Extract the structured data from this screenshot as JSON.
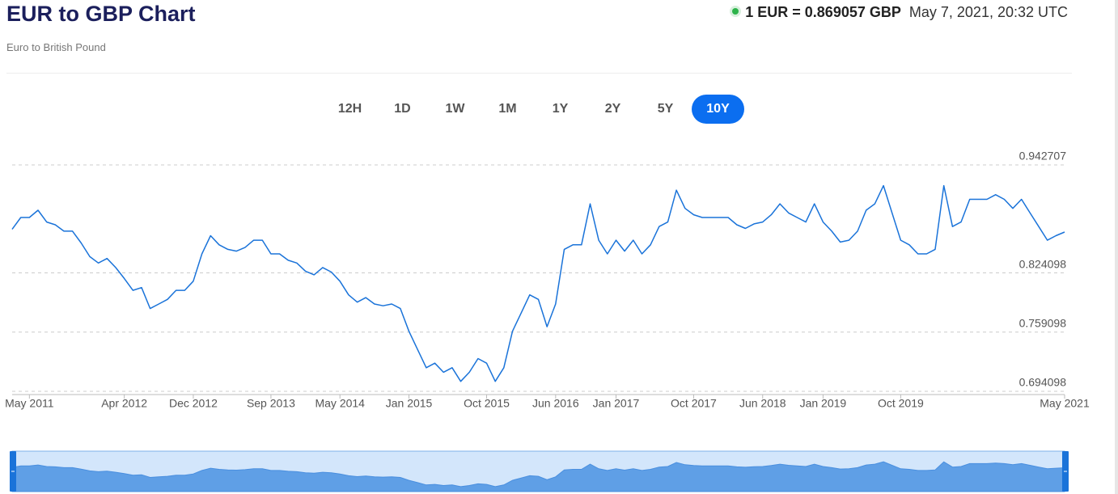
{
  "header": {
    "title": "EUR to GBP Chart",
    "subtitle": "Euro to British Pound",
    "rate_text": "1 EUR = 0.869057 GBP",
    "timestamp": "May 7, 2021, 20:32 UTC"
  },
  "ranges": [
    "12H",
    "1D",
    "1W",
    "1M",
    "1Y",
    "2Y",
    "5Y",
    "10Y"
  ],
  "selected_range": 7,
  "chart_data": {
    "type": "line",
    "color": "#1a73d9",
    "x": [
      "2011-03",
      "2011-04",
      "2011-05",
      "2011-06",
      "2011-07",
      "2011-08",
      "2011-09",
      "2011-10",
      "2011-11",
      "2011-12",
      "2012-01",
      "2012-02",
      "2012-03",
      "2012-04",
      "2012-05",
      "2012-06",
      "2012-07",
      "2012-08",
      "2012-09",
      "2012-10",
      "2012-11",
      "2012-12",
      "2013-01",
      "2013-02",
      "2013-03",
      "2013-04",
      "2013-05",
      "2013-06",
      "2013-07",
      "2013-08",
      "2013-09",
      "2013-10",
      "2013-11",
      "2013-12",
      "2014-01",
      "2014-02",
      "2014-03",
      "2014-04",
      "2014-05",
      "2014-06",
      "2014-07",
      "2014-08",
      "2014-09",
      "2014-10",
      "2014-11",
      "2014-12",
      "2015-01",
      "2015-02",
      "2015-03",
      "2015-04",
      "2015-05",
      "2015-06",
      "2015-07",
      "2015-08",
      "2015-09",
      "2015-10",
      "2015-11",
      "2015-12",
      "2016-01",
      "2016-02",
      "2016-03",
      "2016-04",
      "2016-05",
      "2016-06",
      "2016-07",
      "2016-08",
      "2016-09",
      "2016-10",
      "2016-11",
      "2016-12",
      "2017-01",
      "2017-02",
      "2017-03",
      "2017-04",
      "2017-05",
      "2017-06",
      "2017-07",
      "2017-08",
      "2017-09",
      "2017-10",
      "2017-11",
      "2017-12",
      "2018-01",
      "2018-02",
      "2018-03",
      "2018-04",
      "2018-05",
      "2018-06",
      "2018-07",
      "2018-08",
      "2018-09",
      "2018-10",
      "2018-11",
      "2018-12",
      "2019-01",
      "2019-02",
      "2019-03",
      "2019-04",
      "2019-05",
      "2019-06",
      "2019-07",
      "2019-08",
      "2019-09",
      "2019-10",
      "2019-11",
      "2019-12",
      "2020-01",
      "2020-02",
      "2020-03",
      "2020-04",
      "2020-05",
      "2020-06",
      "2020-07",
      "2020-08",
      "2020-09",
      "2020-10",
      "2020-11",
      "2020-12",
      "2021-01",
      "2021-02",
      "2021-03",
      "2021-04",
      "2021-05"
    ],
    "values": [
      0.872,
      0.885,
      0.885,
      0.893,
      0.88,
      0.877,
      0.87,
      0.87,
      0.857,
      0.842,
      0.835,
      0.84,
      0.83,
      0.818,
      0.805,
      0.808,
      0.785,
      0.79,
      0.795,
      0.805,
      0.805,
      0.815,
      0.845,
      0.865,
      0.855,
      0.85,
      0.848,
      0.852,
      0.86,
      0.86,
      0.845,
      0.845,
      0.838,
      0.835,
      0.826,
      0.822,
      0.83,
      0.825,
      0.815,
      0.8,
      0.792,
      0.797,
      0.79,
      0.788,
      0.79,
      0.785,
      0.76,
      0.74,
      0.72,
      0.725,
      0.715,
      0.72,
      0.705,
      0.715,
      0.73,
      0.725,
      0.705,
      0.72,
      0.76,
      0.78,
      0.8,
      0.795,
      0.765,
      0.79,
      0.85,
      0.855,
      0.855,
      0.9,
      0.86,
      0.845,
      0.86,
      0.848,
      0.86,
      0.845,
      0.855,
      0.875,
      0.88,
      0.915,
      0.895,
      0.888,
      0.885,
      0.885,
      0.885,
      0.885,
      0.877,
      0.873,
      0.878,
      0.88,
      0.888,
      0.9,
      0.89,
      0.885,
      0.88,
      0.9,
      0.88,
      0.87,
      0.858,
      0.86,
      0.87,
      0.893,
      0.9,
      0.92,
      0.89,
      0.86,
      0.855,
      0.845,
      0.845,
      0.85,
      0.92,
      0.875,
      0.88,
      0.905,
      0.905,
      0.905,
      0.91,
      0.905,
      0.895,
      0.905,
      0.89,
      0.875,
      0.86,
      0.865,
      0.869
    ],
    "xlim": [
      "2011-03",
      "2021-05"
    ],
    "xticks": [
      {
        "value": "2011-05",
        "label": "May 2011"
      },
      {
        "value": "2012-04",
        "label": "Apr 2012"
      },
      {
        "value": "2012-12",
        "label": "Dec 2012"
      },
      {
        "value": "2013-09",
        "label": "Sep 2013"
      },
      {
        "value": "2014-05",
        "label": "May 2014"
      },
      {
        "value": "2015-01",
        "label": "Jan 2015"
      },
      {
        "value": "2015-10",
        "label": "Oct 2015"
      },
      {
        "value": "2016-06",
        "label": "Jun 2016"
      },
      {
        "value": "2017-01",
        "label": "Jan 2017"
      },
      {
        "value": "2017-10",
        "label": "Oct 2017"
      },
      {
        "value": "2018-06",
        "label": "Jun 2018"
      },
      {
        "value": "2019-01",
        "label": "Jan 2019"
      },
      {
        "value": "2019-10",
        "label": "Oct 2019"
      },
      {
        "value": "2021-05",
        "label": "May 2021"
      }
    ],
    "ylim": [
      0.6905,
      0.942707
    ],
    "yticks": [
      0.694098,
      0.759098,
      0.824098,
      0.942707
    ],
    "grid": true
  }
}
